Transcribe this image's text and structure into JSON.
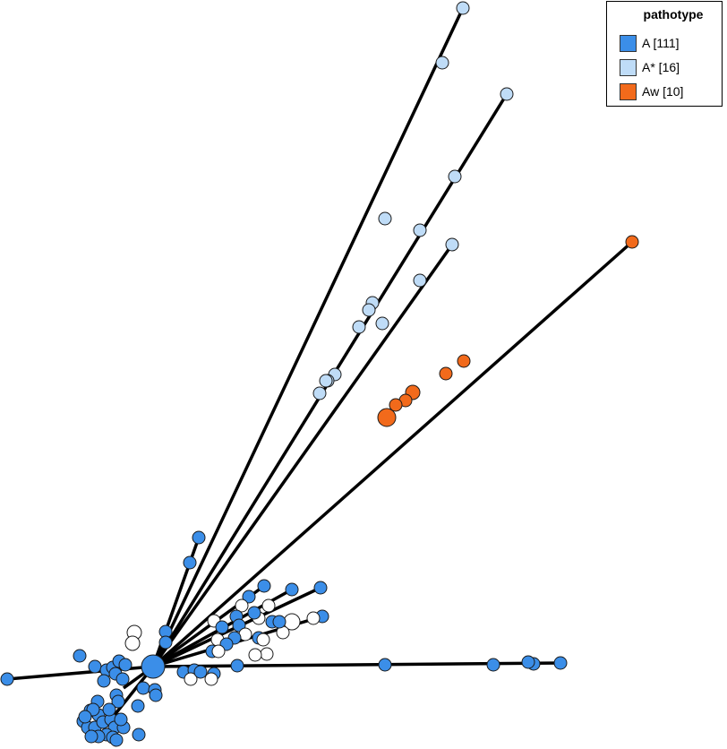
{
  "legend": {
    "title": "pathotype",
    "items": [
      {
        "label": "A [111]",
        "color": "#3b8ee8"
      },
      {
        "label": "A* [16]",
        "color": "#bfdcf7"
      },
      {
        "label": "Aw [10]",
        "color": "#f26a1b"
      }
    ]
  },
  "colors": {
    "A": "#3b8ee8",
    "A*": "#bfdcf7",
    "Aw": "#f26a1b",
    "unknown": "#ffffff",
    "edge": "#000000"
  }
}
